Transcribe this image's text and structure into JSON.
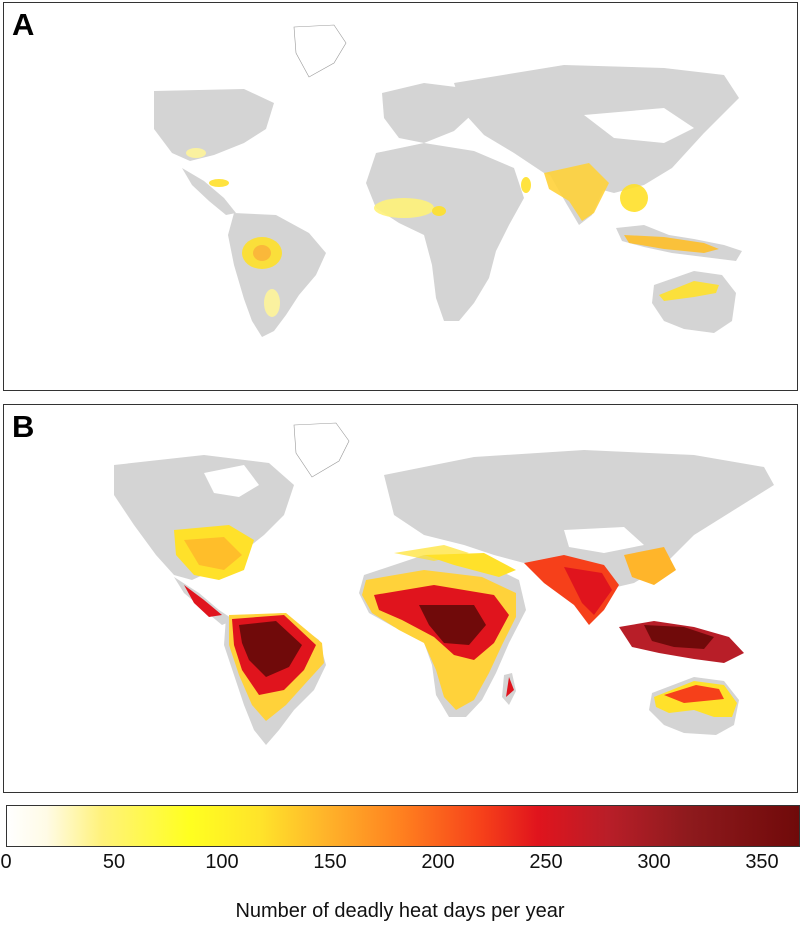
{
  "panels": [
    {
      "letter": "A"
    },
    {
      "letter": "B"
    }
  ],
  "legend": {
    "ticks": [
      "0",
      "50",
      "100",
      "150",
      "200",
      "250",
      "300",
      "350"
    ],
    "label": "Number of deadly heat days per year"
  },
  "colors": {
    "land": "#d4d4d4",
    "water": "#ffffff",
    "scale_low": "#ffffff",
    "scale_mid": "#ffff20",
    "scale_high": "#700a0a"
  }
}
